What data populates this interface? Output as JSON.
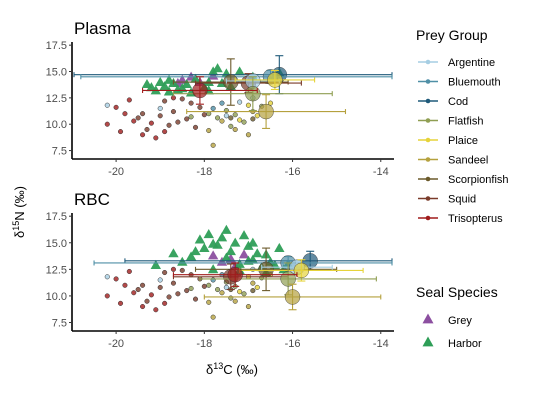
{
  "chart_data": {
    "type": "scatter",
    "xlabel": "δ13C (‰)",
    "ylabel": "δ15N (‰)",
    "xlim": [
      -21,
      -13.7
    ],
    "ylim": [
      6.7,
      17.8
    ],
    "x_ticks": [
      -20,
      -18,
      -16,
      -14
    ],
    "y_ticks": [
      7.5,
      10.0,
      12.5,
      15.0,
      17.5
    ],
    "x_tick_labels": [
      "-20",
      "-18",
      "-16",
      "-14"
    ],
    "y_tick_labels": [
      "7.5",
      "10.0",
      "12.5",
      "15.0",
      "17.5"
    ],
    "grid": false,
    "legend": {
      "placement": "right",
      "prey_group_title": "Prey Group",
      "prey_groups": [
        {
          "name": "Argentine",
          "color": "#a6cee3"
        },
        {
          "name": "Bluemouth",
          "color": "#4f8fa6"
        },
        {
          "name": "Cod",
          "color": "#1f5a7a"
        },
        {
          "name": "Flatfish",
          "color": "#8f9e52"
        },
        {
          "name": "Plaice",
          "color": "#e6d33a"
        },
        {
          "name": "Sandeel",
          "color": "#b5a13e"
        },
        {
          "name": "Scorpionfish",
          "color": "#6b5a2b"
        },
        {
          "name": "Squid",
          "color": "#7a3b2a"
        },
        {
          "name": "Trisopterus",
          "color": "#a01c1c"
        }
      ],
      "seal_title": "Seal Species",
      "seal_species": [
        {
          "name": "Grey",
          "color": "#8c4fa0"
        },
        {
          "name": "Harbor",
          "color": "#2e9e57"
        }
      ]
    },
    "panels": [
      {
        "title": "Plasma",
        "seals": [
          {
            "species": "Grey",
            "points": [
              [
                -18.5,
                14.2
              ],
              [
                -18.3,
                14.5
              ],
              [
                -18.6,
                13.9
              ],
              [
                -18.1,
                14.0
              ],
              [
                -17.8,
                14.6
              ]
            ]
          },
          {
            "species": "Harbor",
            "points": [
              [
                -19.3,
                13.8
              ],
              [
                -19.1,
                13.2
              ],
              [
                -19.0,
                14.0
              ],
              [
                -18.9,
                13.6
              ],
              [
                -18.8,
                13.1
              ],
              [
                -18.7,
                13.9
              ],
              [
                -18.6,
                13.3
              ],
              [
                -18.4,
                13.8
              ],
              [
                -18.3,
                13.0
              ],
              [
                -18.2,
                14.3
              ],
              [
                -18.0,
                13.5
              ],
              [
                -17.9,
                14.0
              ],
              [
                -17.8,
                15.0
              ],
              [
                -17.7,
                15.3
              ],
              [
                -17.5,
                14.8
              ],
              [
                -17.4,
                13.6
              ],
              [
                -18.5,
                13.4
              ],
              [
                -18.8,
                14.2
              ],
              [
                -17.6,
                13.9
              ],
              [
                -17.2,
                15.0
              ],
              [
                -16.9,
                14.5
              ],
              [
                -16.5,
                14.2
              ],
              [
                -16.3,
                14.9
              ],
              [
                -19.2,
                13.5
              ],
              [
                -17.9,
                13.2
              ]
            ]
          }
        ],
        "prey_points": [
          {
            "group": "Argentine",
            "points": [
              [
                -20.2,
                11.8
              ],
              [
                -19.0,
                11.5
              ],
              [
                -17.2,
                12.1
              ],
              [
                -16.9,
                12.5
              ],
              [
                -17.5,
                10.8
              ]
            ]
          },
          {
            "group": "Bluemouth",
            "points": [
              [
                -17.8,
                11.5
              ],
              [
                -17.6,
                12.0
              ]
            ]
          },
          {
            "group": "Flatfish",
            "points": [
              [
                -17.9,
                11.0
              ],
              [
                -17.7,
                10.6
              ],
              [
                -17.3,
                10.9
              ],
              [
                -17.1,
                10.2
              ],
              [
                -17.5,
                11.3
              ],
              [
                -16.7,
                11.7
              ],
              [
                -17.4,
                9.8
              ],
              [
                -18.3,
                10.7
              ]
            ]
          },
          {
            "group": "Plaice",
            "points": [
              [
                -17.2,
                10.4
              ],
              [
                -16.8,
                10.8
              ],
              [
                -16.5,
                12.0
              ],
              [
                -17.0,
                11.8
              ]
            ]
          },
          {
            "group": "Sandeel",
            "points": [
              [
                -17.6,
                10.3
              ],
              [
                -17.3,
                9.5
              ],
              [
                -17.0,
                9.0
              ],
              [
                -17.8,
                8.0
              ],
              [
                -16.9,
                11.2
              ],
              [
                -17.9,
                9.4
              ]
            ]
          },
          {
            "group": "Scorpionfish",
            "points": [
              [
                -17.4,
                10.6
              ],
              [
                -16.9,
                10.5
              ]
            ]
          },
          {
            "group": "Squid",
            "points": [
              [
                -19.4,
                11.0
              ],
              [
                -19.0,
                10.8
              ],
              [
                -18.7,
                11.2
              ],
              [
                -18.4,
                10.5
              ],
              [
                -18.9,
                12.2
              ],
              [
                -18.1,
                11.6
              ],
              [
                -18.6,
                10.2
              ],
              [
                -18.8,
                9.9
              ],
              [
                -19.3,
                9.5
              ],
              [
                -19.5,
                10.6
              ],
              [
                -18.2,
                9.7
              ],
              [
                -18.5,
                12.4
              ],
              [
                -18.0,
                10.9
              ],
              [
                -18.3,
                12.0
              ]
            ]
          },
          {
            "group": "Trisopterus",
            "points": [
              [
                -20.2,
                10.0
              ],
              [
                -19.9,
                9.3
              ],
              [
                -19.6,
                10.3
              ],
              [
                -19.8,
                11.0
              ],
              [
                -19.4,
                9.0
              ],
              [
                -20.0,
                11.6
              ],
              [
                -19.2,
                10.1
              ],
              [
                -18.9,
                9.3
              ],
              [
                -19.7,
                12.3
              ],
              [
                -18.7,
                12.5
              ],
              [
                -19.1,
                8.7
              ]
            ]
          }
        ],
        "prey_means": [
          {
            "group": "Cod",
            "x": -16.3,
            "y": 14.7,
            "xerr": 4.9,
            "yerr": 1.8
          },
          {
            "group": "Bluemouth",
            "x": -16.5,
            "y": 14.5,
            "xerr": 4.3,
            "yerr": 0.6
          },
          {
            "group": "Scorpionfish",
            "x": -17.4,
            "y": 14.0,
            "xerr": 1.3,
            "yerr": 2.2
          },
          {
            "group": "Squid",
            "x": -17.0,
            "y": 13.9,
            "xerr": 1.2,
            "yerr": 0.9
          },
          {
            "group": "Argentine",
            "x": -16.9,
            "y": 14.1,
            "xerr": 0.6,
            "yerr": 0.5
          },
          {
            "group": "Plaice",
            "x": -16.4,
            "y": 14.2,
            "xerr": 0.9,
            "yerr": 0.9
          },
          {
            "group": "Flatfish",
            "x": -16.9,
            "y": 12.9,
            "xerr": 1.8,
            "yerr": 1.6
          },
          {
            "group": "Sandeel",
            "x": -16.6,
            "y": 11.2,
            "xerr": 1.8,
            "yerr": 1.6
          },
          {
            "group": "Trisopterus",
            "x": -18.1,
            "y": 13.2,
            "xerr": 1.3,
            "yerr": 1.3
          }
        ]
      },
      {
        "title": "RBC",
        "seals": [
          {
            "species": "Grey",
            "points": [
              [
                -17.8,
                13.8
              ],
              [
                -17.4,
                13.5
              ],
              [
                -17.1,
                13.9
              ],
              [
                -17.6,
                13.2
              ],
              [
                -17.3,
                12.8
              ]
            ]
          },
          {
            "species": "Harbor",
            "points": [
              [
                -19.1,
                12.9
              ],
              [
                -18.5,
                13.2
              ],
              [
                -18.3,
                13.7
              ],
              [
                -18.1,
                15.3
              ],
              [
                -18.0,
                14.5
              ],
              [
                -17.9,
                15.8
              ],
              [
                -17.8,
                12.5
              ],
              [
                -17.7,
                14.8
              ],
              [
                -17.6,
                15.5
              ],
              [
                -17.5,
                16.2
              ],
              [
                -17.4,
                14.2
              ],
              [
                -17.3,
                15.0
              ],
              [
                -17.2,
                13.0
              ],
              [
                -17.1,
                15.7
              ],
              [
                -17.0,
                14.7
              ],
              [
                -16.9,
                13.4
              ],
              [
                -16.8,
                14.0
              ],
              [
                -16.7,
                12.7
              ],
              [
                -16.6,
                13.9
              ],
              [
                -16.5,
                13.2
              ],
              [
                -16.4,
                12.9
              ],
              [
                -16.3,
                14.5
              ],
              [
                -16.1,
                13.0
              ],
              [
                -18.7,
                14.0
              ],
              [
                -17.8,
                14.9
              ],
              [
                -17.5,
                13.6
              ],
              [
                -17.2,
                12.4
              ],
              [
                -16.9,
                15.0
              ],
              [
                -18.2,
                14.2
              ],
              [
                -16.6,
                12.2
              ],
              [
                -16.2,
                12.5
              ],
              [
                -17.0,
                13.3
              ]
            ]
          }
        ],
        "prey_points": [
          {
            "group": "Argentine",
            "points": [
              [
                -20.2,
                11.8
              ],
              [
                -19.0,
                11.5
              ],
              [
                -17.2,
                12.1
              ],
              [
                -16.9,
                12.5
              ],
              [
                -17.5,
                10.8
              ]
            ]
          },
          {
            "group": "Bluemouth",
            "points": [
              [
                -17.8,
                11.5
              ],
              [
                -17.6,
                12.0
              ]
            ]
          },
          {
            "group": "Flatfish",
            "points": [
              [
                -17.9,
                11.0
              ],
              [
                -17.7,
                10.6
              ],
              [
                -17.3,
                10.9
              ],
              [
                -17.1,
                10.2
              ],
              [
                -17.5,
                11.3
              ],
              [
                -16.7,
                11.7
              ],
              [
                -17.4,
                9.8
              ],
              [
                -18.3,
                10.7
              ]
            ]
          },
          {
            "group": "Plaice",
            "points": [
              [
                -17.2,
                10.4
              ],
              [
                -16.8,
                10.8
              ],
              [
                -16.5,
                12.0
              ],
              [
                -17.0,
                11.8
              ]
            ]
          },
          {
            "group": "Sandeel",
            "points": [
              [
                -17.6,
                10.3
              ],
              [
                -17.3,
                9.5
              ],
              [
                -17.0,
                9.0
              ],
              [
                -17.8,
                8.0
              ],
              [
                -16.9,
                11.2
              ],
              [
                -17.9,
                9.4
              ]
            ]
          },
          {
            "group": "Scorpionfish",
            "points": [
              [
                -17.4,
                10.6
              ],
              [
                -16.9,
                10.5
              ]
            ]
          },
          {
            "group": "Squid",
            "points": [
              [
                -19.4,
                11.0
              ],
              [
                -19.0,
                10.8
              ],
              [
                -18.7,
                11.2
              ],
              [
                -18.4,
                10.5
              ],
              [
                -18.9,
                12.2
              ],
              [
                -18.1,
                11.6
              ],
              [
                -18.6,
                10.2
              ],
              [
                -18.8,
                9.9
              ],
              [
                -19.3,
                9.5
              ],
              [
                -19.5,
                10.6
              ],
              [
                -18.2,
                9.7
              ],
              [
                -18.5,
                12.4
              ],
              [
                -18.0,
                10.9
              ],
              [
                -18.3,
                12.0
              ]
            ]
          },
          {
            "group": "Trisopterus",
            "points": [
              [
                -20.2,
                10.0
              ],
              [
                -19.9,
                9.3
              ],
              [
                -19.6,
                10.3
              ],
              [
                -19.8,
                11.0
              ],
              [
                -19.4,
                9.0
              ],
              [
                -20.0,
                11.6
              ],
              [
                -19.2,
                10.1
              ],
              [
                -18.9,
                9.3
              ],
              [
                -19.7,
                12.3
              ],
              [
                -18.7,
                12.5
              ],
              [
                -19.1,
                8.7
              ]
            ]
          }
        ],
        "prey_means": [
          {
            "group": "Cod",
            "x": -15.6,
            "y": 13.3,
            "xerr": 4.2,
            "yerr": 0.9
          },
          {
            "group": "Bluemouth",
            "x": -16.1,
            "y": 13.1,
            "xerr": 4.4,
            "yerr": 0.6
          },
          {
            "group": "Scorpionfish",
            "x": -16.6,
            "y": 12.5,
            "xerr": 1.6,
            "yerr": 2.0
          },
          {
            "group": "Squid",
            "x": -17.4,
            "y": 11.8,
            "xerr": 1.3,
            "yerr": 1.2
          },
          {
            "group": "Argentine",
            "x": -15.9,
            "y": 12.7,
            "xerr": 0.8,
            "yerr": 0.6
          },
          {
            "group": "Plaice",
            "x": -15.8,
            "y": 12.4,
            "xerr": 1.4,
            "yerr": 1.0
          },
          {
            "group": "Flatfish",
            "x": -16.1,
            "y": 11.6,
            "xerr": 2.0,
            "yerr": 1.5
          },
          {
            "group": "Sandeel",
            "x": -16.0,
            "y": 9.9,
            "xerr": 2.0,
            "yerr": 1.2
          },
          {
            "group": "Trisopterus",
            "x": -17.3,
            "y": 12.0,
            "xerr": 1.4,
            "yerr": 1.1
          }
        ]
      }
    ]
  }
}
